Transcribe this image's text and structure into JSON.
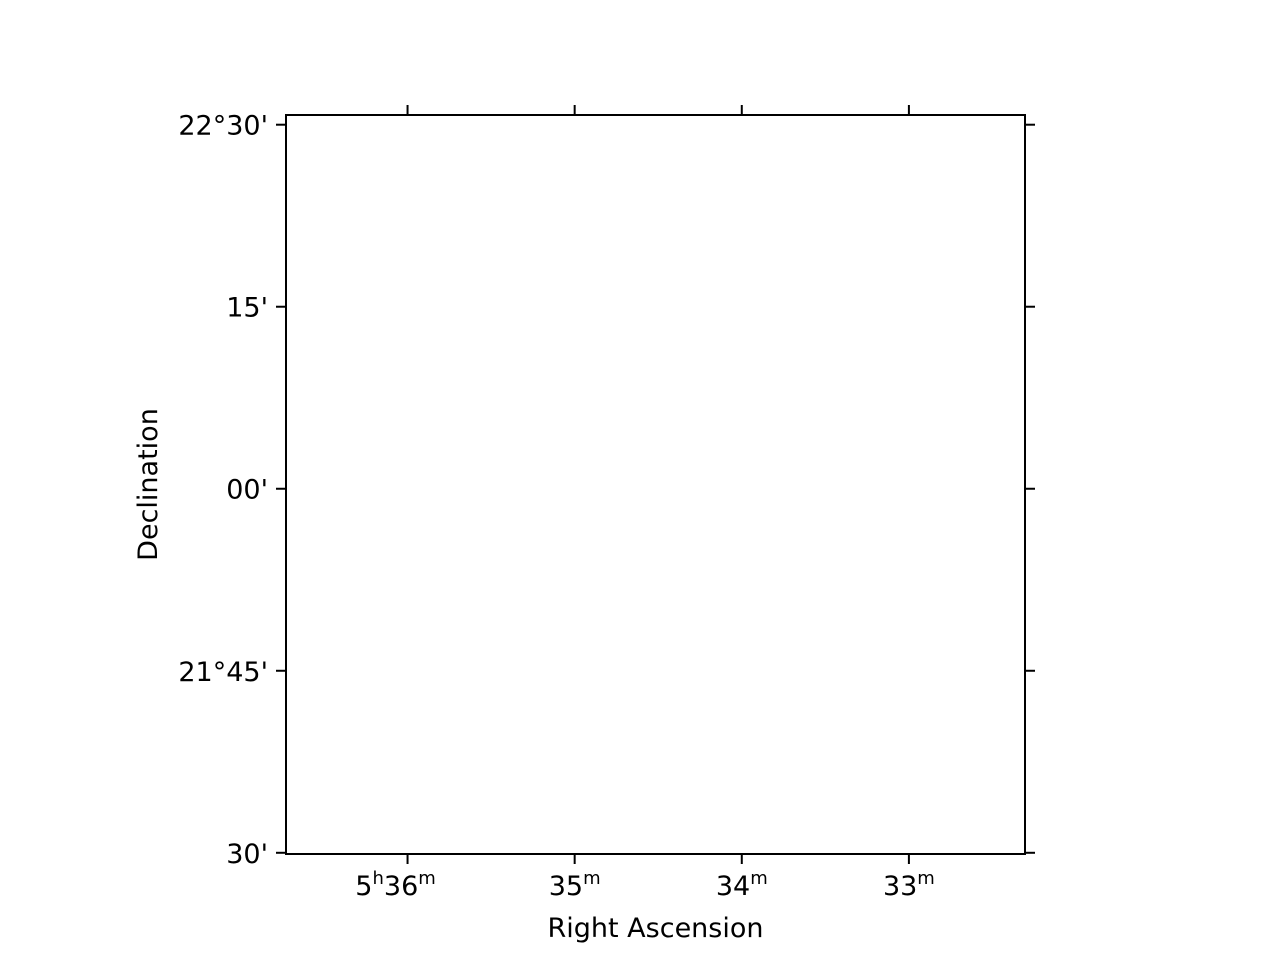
{
  "chart_data": {
    "type": "scatter",
    "title": "",
    "xlabel": "Right Ascension",
    "ylabel": "Declination",
    "grid": false,
    "series": [],
    "x_ticks": [
      {
        "value_ra_min": 336,
        "label": "5",
        "sup1": "h",
        "label2": "36",
        "sup2": "m"
      },
      {
        "value_ra_min": 335,
        "label": "35",
        "sup1": "m"
      },
      {
        "value_ra_min": 334,
        "label": "34",
        "sup1": "m"
      },
      {
        "value_ra_min": 333,
        "label": "33",
        "sup1": "m"
      }
    ],
    "y_ticks": [
      {
        "value_dec_arcmin": 1350,
        "label": "22°30'"
      },
      {
        "value_dec_arcmin": 1335,
        "label": "15'"
      },
      {
        "value_dec_arcmin": 1320,
        "label": "00'"
      },
      {
        "value_dec_arcmin": 1305,
        "label": "21°45'"
      },
      {
        "value_dec_arcmin": 1290,
        "label": "30'"
      }
    ],
    "xlim_ra_min": [
      336.7273,
      332.3053
    ],
    "ylim_dec_arcmin": [
      1289.9,
      1350.8
    ]
  }
}
